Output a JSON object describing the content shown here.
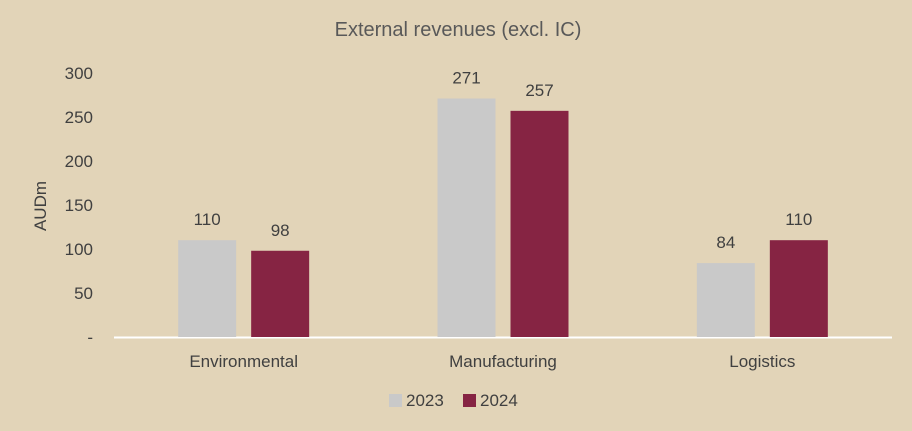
{
  "chart_data": {
    "type": "bar",
    "title": "External revenues (excl. IC)",
    "xlabel": "",
    "ylabel": "AUDm",
    "categories": [
      "Environmental",
      "Manufacturing",
      "Logistics"
    ],
    "series": [
      {
        "name": "2023",
        "color": "#c9c9c9",
        "values": [
          110,
          271,
          84
        ]
      },
      {
        "name": "2024",
        "color": "#862443",
        "values": [
          98,
          257,
          110
        ]
      }
    ],
    "ylim": [
      0,
      300
    ],
    "yticks": [
      0,
      50,
      100,
      150,
      200,
      250,
      300
    ],
    "ytick_labels": [
      "-",
      "50",
      "100",
      "150",
      "200",
      "250",
      "300"
    ],
    "data_labels": [
      [
        "110",
        "271",
        "84"
      ],
      [
        "98",
        "257",
        "110"
      ]
    ],
    "grid": false,
    "legend": "bottom"
  }
}
